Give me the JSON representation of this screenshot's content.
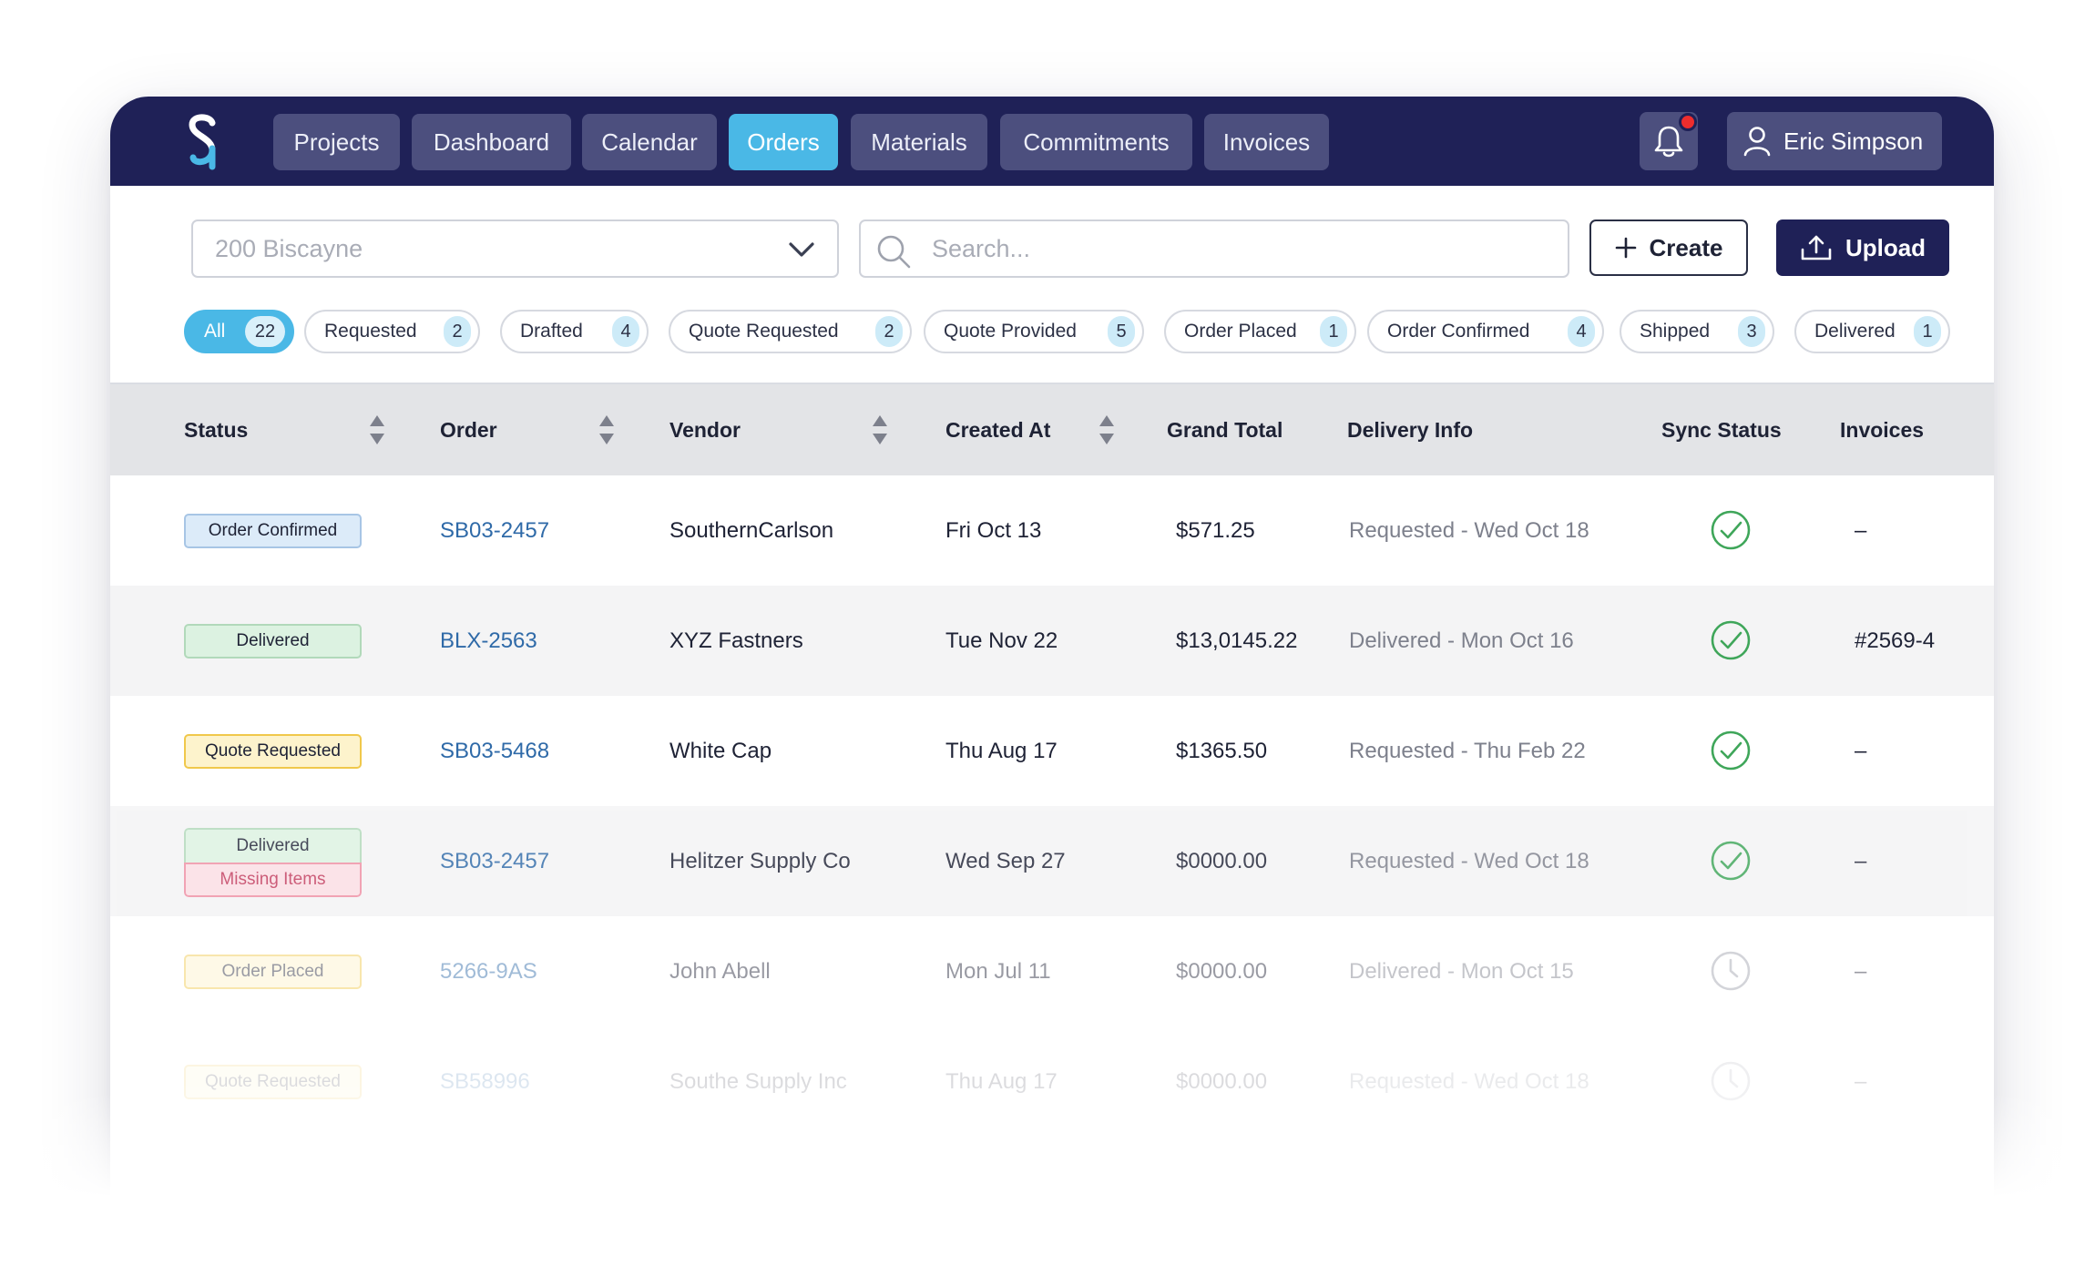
{
  "nav": {
    "tabs": [
      {
        "label": "Projects"
      },
      {
        "label": "Dashboard"
      },
      {
        "label": "Calendar"
      },
      {
        "label": "Orders"
      },
      {
        "label": "Materials"
      },
      {
        "label": "Commitments"
      },
      {
        "label": "Invoices"
      }
    ],
    "active_tab": "Orders",
    "user_name": "Eric Simpson",
    "notification_unread": true,
    "icons": [
      "logo",
      "bell-icon",
      "user-icon"
    ]
  },
  "toolbar": {
    "project_value": "200 Biscayne",
    "search_placeholder": "Search...",
    "create_label": "Create",
    "upload_label": "Upload"
  },
  "filters": [
    {
      "label": "All",
      "count": "22"
    },
    {
      "label": "Requested",
      "count": "2"
    },
    {
      "label": "Drafted",
      "count": "4"
    },
    {
      "label": "Quote Requested",
      "count": "2"
    },
    {
      "label": "Quote Provided",
      "count": "5"
    },
    {
      "label": "Order Placed",
      "count": "1"
    },
    {
      "label": "Order Confirmed",
      "count": "4"
    },
    {
      "label": "Shipped",
      "count": "3"
    },
    {
      "label": "Delivered",
      "count": "1"
    }
  ],
  "table": {
    "columns": [
      "Status",
      "Order",
      "Vendor",
      "Created At",
      "Grand Total",
      "Delivery Info",
      "Sync Status",
      "Invoices"
    ],
    "rows": [
      {
        "status": "Order Confirmed",
        "status_secondary": "",
        "order": "SB03-2457",
        "vendor": "SouthernCarlson",
        "created": "Fri Oct 13",
        "total": "$571.25",
        "delivery": "Requested - Wed Oct 18",
        "sync": "synced",
        "invoice": "–"
      },
      {
        "status": "Delivered",
        "status_secondary": "",
        "order": "BLX-2563",
        "vendor": "XYZ Fastners",
        "created": "Tue Nov 22",
        "total": "$13,0145.22",
        "delivery": "Delivered - Mon Oct 16",
        "sync": "synced",
        "invoice": "#2569-4"
      },
      {
        "status": "Quote Requested",
        "status_secondary": "",
        "order": "SB03-5468",
        "vendor": "White Cap",
        "created": "Thu Aug 17",
        "total": "$1365.50",
        "delivery": "Requested - Thu Feb 22",
        "sync": "synced",
        "invoice": "–"
      },
      {
        "status": "Delivered",
        "status_secondary": "Missing Items",
        "order": "SB03-2457",
        "vendor": "Helitzer Supply Co",
        "created": "Wed Sep 27",
        "total": "$0000.00",
        "delivery": "Requested - Wed Oct 18",
        "sync": "synced",
        "invoice": "–"
      },
      {
        "status": "Order Placed",
        "status_secondary": "",
        "order": "5266-9AS",
        "vendor": "John Abell",
        "created": "Mon Jul 11",
        "total": "$0000.00",
        "delivery": "Delivered - Mon Oct 15",
        "sync": "pending",
        "invoice": "–"
      },
      {
        "status": "Quote Requested",
        "status_secondary": "",
        "order": "SB58996",
        "vendor": "Southe Supply Inc",
        "created": "Thu Aug 17",
        "total": "$0000.00",
        "delivery": "Requested - Wed Oct 18",
        "sync": "pending",
        "invoice": "–"
      }
    ]
  },
  "colors": {
    "nav_bg": "#1f2157",
    "nav_tab_bg": "#4c4f7e",
    "accent": "#4ab8e6",
    "order_link": "#2f6aa8",
    "sync_ok": "#3fa65a",
    "notification": "#ee2d2d"
  }
}
